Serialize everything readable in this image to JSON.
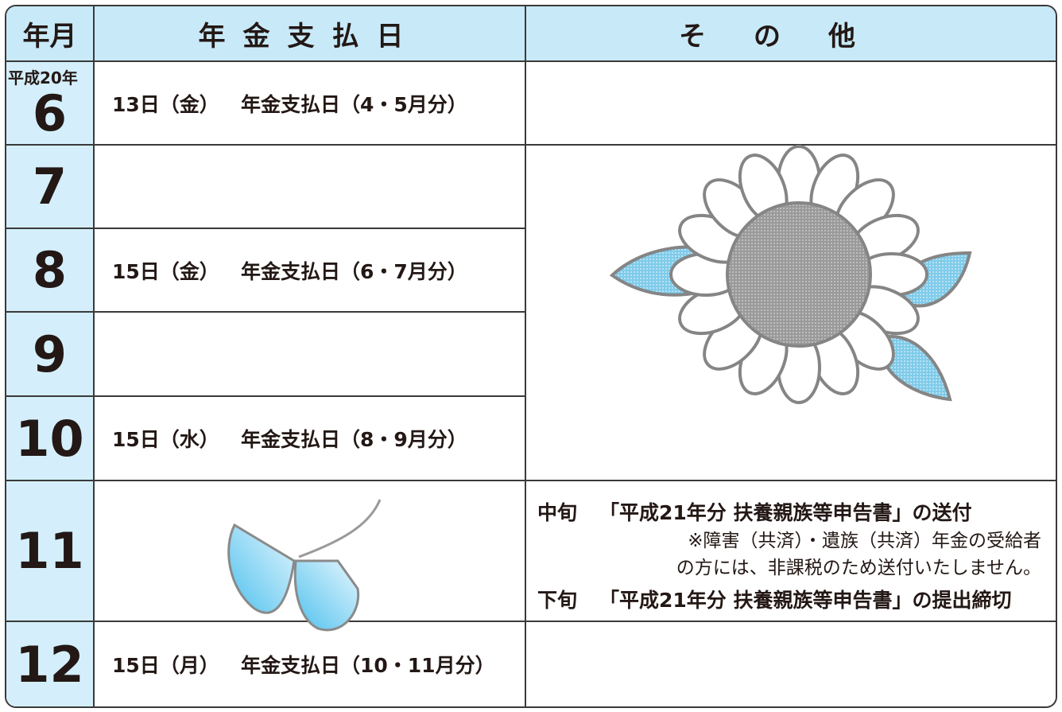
{
  "header": {
    "month": "年月",
    "payment": "年金支払日",
    "other": "その他"
  },
  "rows": [
    {
      "era": "平成20年",
      "month": "6",
      "date": "13日（金）",
      "payment": "年金支払日（4・5月分）"
    },
    {
      "month": "7"
    },
    {
      "month": "8",
      "date": "15日（金）",
      "payment": "年金支払日（6・7月分）"
    },
    {
      "month": "9"
    },
    {
      "month": "10",
      "date": "15日（水）",
      "payment": "年金支払日（8・9月分）"
    },
    {
      "month": "11",
      "other": {
        "items": [
          {
            "when": "中旬",
            "text": "「平成21年分 扶養親族等申告書」の送付"
          },
          {
            "when": "下旬",
            "text": "「平成21年分 扶養親族等申告書」の提出締切"
          }
        ],
        "note": [
          "※障害（共済）・遺族（共済）年金の受給者",
          "の方には、非課税のため送付いたしません。"
        ]
      }
    },
    {
      "month": "12",
      "date": "15日（月）",
      "payment": "年金支払日（10・11月分）"
    }
  ]
}
